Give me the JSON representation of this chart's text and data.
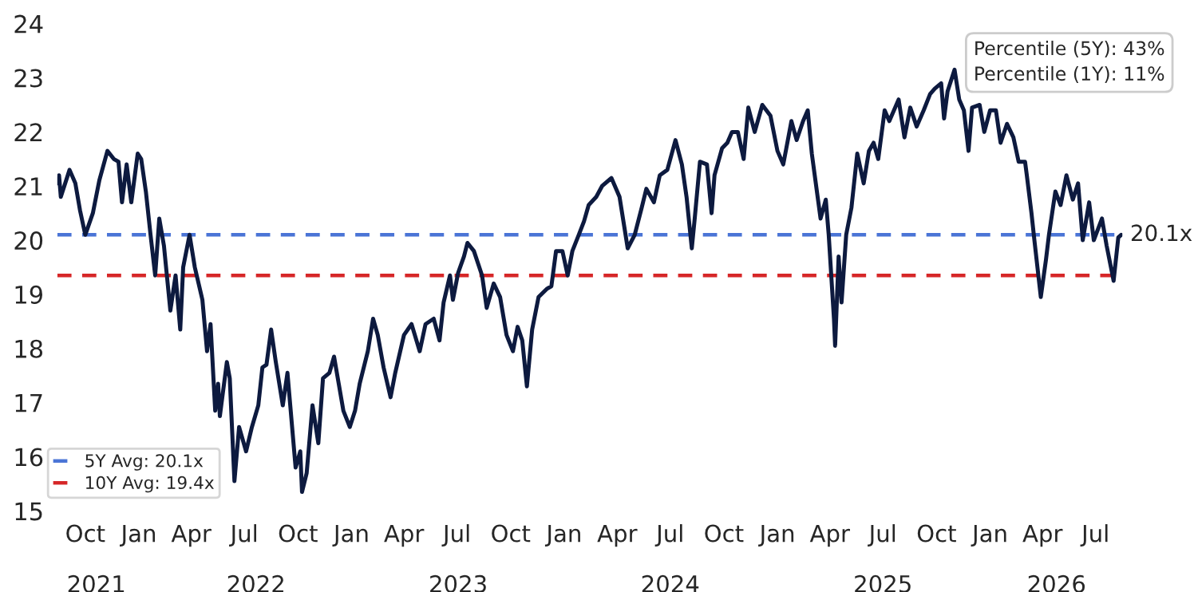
{
  "chart_data": {
    "type": "line",
    "x": [
      "2021-08-15",
      "2021-08-17",
      "2021-08-20",
      "2021-09-04",
      "2021-09-14",
      "2021-09-22",
      "2021-10-01",
      "2021-10-14",
      "2021-10-25",
      "2021-11-08",
      "2021-11-19",
      "2021-11-27",
      "2021-12-03",
      "2021-12-11",
      "2021-12-19",
      "2021-12-30",
      "2022-01-05",
      "2022-01-13",
      "2022-01-21",
      "2022-01-29",
      "2022-02-05",
      "2022-02-13",
      "2022-02-24",
      "2022-03-05",
      "2022-03-13",
      "2022-03-18",
      "2022-03-29",
      "2022-04-07",
      "2022-04-20",
      "2022-04-28",
      "2022-05-04",
      "2022-05-12",
      "2022-05-17",
      "2022-05-20",
      "2022-06-01",
      "2022-06-06",
      "2022-06-14",
      "2022-06-22",
      "2022-07-04",
      "2022-07-14",
      "2022-07-25",
      "2022-08-01",
      "2022-08-08",
      "2022-08-16",
      "2022-08-24",
      "2022-09-05",
      "2022-09-13",
      "2022-09-21",
      "2022-09-27",
      "2022-10-05",
      "2022-10-08",
      "2022-10-16",
      "2022-10-26",
      "2022-11-05",
      "2022-11-13",
      "2022-11-24",
      "2022-12-02",
      "2022-12-10",
      "2022-12-18",
      "2022-12-29",
      "2023-01-07",
      "2023-01-15",
      "2023-01-29",
      "2023-02-07",
      "2023-02-15",
      "2023-02-25",
      "2023-03-09",
      "2023-03-17",
      "2023-04-01",
      "2023-04-14",
      "2023-04-28",
      "2023-05-08",
      "2023-05-22",
      "2023-06-01",
      "2023-06-08",
      "2023-06-19",
      "2023-06-24",
      "2023-07-03",
      "2023-07-13",
      "2023-07-19",
      "2023-07-30",
      "2023-08-13",
      "2023-08-21",
      "2023-09-02",
      "2023-09-13",
      "2023-09-24",
      "2023-10-05",
      "2023-10-13",
      "2023-10-21",
      "2023-10-29",
      "2023-11-07",
      "2023-11-18",
      "2023-12-02",
      "2023-12-10",
      "2023-12-18",
      "2023-12-29",
      "2024-01-07",
      "2024-01-15",
      "2024-01-26",
      "2024-02-04",
      "2024-02-12",
      "2024-02-25",
      "2024-03-06",
      "2024-03-22",
      "2024-04-05",
      "2024-04-19",
      "2024-05-01",
      "2024-05-13",
      "2024-05-21",
      "2024-06-03",
      "2024-06-13",
      "2024-06-26",
      "2024-07-10",
      "2024-07-21",
      "2024-07-29",
      "2024-08-07",
      "2024-08-12",
      "2024-08-21",
      "2024-09-02",
      "2024-09-10",
      "2024-09-15",
      "2024-09-28",
      "2024-10-07",
      "2024-10-15",
      "2024-10-25",
      "2024-11-04",
      "2024-11-12",
      "2024-11-23",
      "2024-12-06",
      "2024-12-20",
      "2025-01-01",
      "2025-01-11",
      "2025-01-25",
      "2025-02-03",
      "2025-02-14",
      "2025-02-22",
      "2025-03-01",
      "2025-03-11",
      "2025-03-16",
      "2025-03-25",
      "2025-03-30",
      "2025-04-08",
      "2025-04-10",
      "2025-04-16",
      "2025-04-21",
      "2025-04-29",
      "2025-05-08",
      "2025-05-18",
      "2025-05-29",
      "2025-06-07",
      "2025-06-15",
      "2025-06-23",
      "2025-07-04",
      "2025-07-12",
      "2025-07-28",
      "2025-08-07",
      "2025-08-17",
      "2025-08-28",
      "2025-09-09",
      "2025-09-20",
      "2025-09-28",
      "2025-10-09",
      "2025-10-14",
      "2025-10-20",
      "2025-11-01",
      "2025-11-09",
      "2025-11-17",
      "2025-11-25",
      "2025-12-01",
      "2025-12-14",
      "2025-12-22",
      "2026-01-01",
      "2026-01-11",
      "2026-01-19",
      "2026-01-30",
      "2026-02-10",
      "2026-02-19",
      "2026-03-02",
      "2026-03-05",
      "2026-03-13",
      "2026-03-18",
      "2026-03-29",
      "2026-04-07",
      "2026-04-12",
      "2026-04-23",
      "2026-05-02",
      "2026-05-12",
      "2026-05-23",
      "2026-06-01",
      "2026-06-09",
      "2026-06-20",
      "2026-06-28",
      "2026-07-12",
      "2026-07-20",
      "2026-08-01",
      "2026-08-09",
      "2026-08-14"
    ],
    "series": [
      {
        "color": "#0d1a3f",
        "values": [
          21.05,
          21.2,
          20.8,
          21.3,
          21.05,
          20.55,
          20.1,
          20.5,
          21.1,
          21.65,
          21.5,
          21.45,
          20.7,
          21.4,
          20.7,
          21.6,
          21.5,
          20.9,
          20.1,
          19.35,
          20.4,
          19.9,
          18.7,
          19.35,
          18.35,
          19.5,
          20.1,
          19.5,
          18.9,
          17.95,
          18.45,
          16.85,
          17.35,
          16.75,
          17.75,
          17.45,
          15.55,
          16.55,
          16.1,
          16.55,
          16.95,
          17.65,
          17.7,
          18.35,
          17.75,
          16.95,
          17.55,
          16.55,
          15.8,
          16.1,
          15.35,
          15.7,
          16.95,
          16.25,
          17.45,
          17.55,
          17.85,
          17.35,
          16.85,
          16.55,
          16.85,
          17.35,
          17.95,
          18.55,
          18.25,
          17.65,
          17.1,
          17.55,
          18.25,
          18.45,
          17.95,
          18.45,
          18.55,
          18.15,
          18.85,
          19.35,
          18.9,
          19.4,
          19.7,
          19.95,
          19.8,
          19.35,
          18.75,
          19.2,
          18.95,
          18.25,
          17.95,
          18.4,
          18.15,
          17.3,
          18.35,
          18.95,
          19.1,
          19.15,
          19.8,
          19.8,
          19.35,
          19.8,
          20.1,
          20.35,
          20.65,
          20.8,
          21.0,
          21.15,
          20.8,
          19.85,
          20.1,
          20.6,
          20.95,
          20.7,
          21.2,
          21.3,
          21.85,
          21.4,
          20.8,
          19.85,
          20.4,
          21.45,
          21.4,
          20.5,
          21.2,
          21.7,
          21.8,
          22.0,
          22.0,
          21.5,
          22.45,
          22.0,
          22.5,
          22.3,
          21.65,
          21.4,
          22.2,
          21.85,
          22.2,
          22.4,
          21.6,
          20.8,
          20.4,
          20.75,
          20.1,
          18.55,
          18.05,
          19.7,
          18.85,
          20.1,
          20.6,
          21.6,
          21.05,
          21.65,
          21.8,
          21.5,
          22.4,
          22.2,
          22.6,
          21.9,
          22.45,
          22.1,
          22.4,
          22.7,
          22.8,
          22.9,
          22.25,
          22.75,
          23.15,
          22.6,
          22.4,
          21.65,
          22.45,
          22.5,
          22.0,
          22.4,
          22.4,
          21.8,
          22.15,
          21.9,
          21.45,
          21.45,
          21.2,
          20.5,
          20.0,
          18.95,
          19.65,
          20.1,
          20.9,
          20.65,
          21.2,
          20.75,
          21.05,
          20.0,
          20.7,
          20.0,
          20.4,
          19.9,
          19.25,
          20.05,
          20.1
        ]
      }
    ],
    "xlim": [
      "2021-08-14",
      "2026-08-16"
    ],
    "xticks": [
      {
        "value": "2021-10-01",
        "label": "Oct"
      },
      {
        "value": "2022-01-01",
        "label": "Jan"
      },
      {
        "value": "2022-04-01",
        "label": "Apr"
      },
      {
        "value": "2022-07-01",
        "label": "Jul"
      },
      {
        "value": "2022-10-01",
        "label": "Oct"
      },
      {
        "value": "2023-01-01",
        "label": "Jan"
      },
      {
        "value": "2023-04-01",
        "label": "Apr"
      },
      {
        "value": "2023-07-01",
        "label": "Jul"
      },
      {
        "value": "2023-10-01",
        "label": "Oct"
      },
      {
        "value": "2024-01-01",
        "label": "Jan"
      },
      {
        "value": "2024-04-01",
        "label": "Apr"
      },
      {
        "value": "2024-07-01",
        "label": "Jul"
      },
      {
        "value": "2024-10-01",
        "label": "Oct"
      },
      {
        "value": "2025-01-01",
        "label": "Jan"
      },
      {
        "value": "2025-04-01",
        "label": "Apr"
      },
      {
        "value": "2025-07-01",
        "label": "Jul"
      },
      {
        "value": "2025-10-01",
        "label": "Oct"
      },
      {
        "value": "2026-01-01",
        "label": "Jan"
      },
      {
        "value": "2026-04-01",
        "label": "Apr"
      },
      {
        "value": "2026-07-01",
        "label": "Jul"
      }
    ],
    "x2lim": [
      "2021-08-14",
      "2026-08-16"
    ],
    "x2ticks": [
      {
        "value": "2021-10-20",
        "label": "2021"
      },
      {
        "value": "2022-07-21",
        "label": "2022"
      },
      {
        "value": "2023-07-03",
        "label": "2023"
      },
      {
        "value": "2024-07-01",
        "label": "2024"
      },
      {
        "value": "2025-07-01",
        "label": "2025"
      },
      {
        "value": "2026-04-25",
        "label": "2026"
      }
    ],
    "ylim": [
      15,
      24
    ],
    "yticks": [
      15,
      16,
      17,
      18,
      19,
      20,
      21,
      22,
      23,
      24
    ],
    "ref_lines": [
      {
        "axis": "y",
        "value": 20.1,
        "label": "5Y Avg: 20.1x",
        "color": "#4a74d6",
        "line_style": "dashed"
      },
      {
        "axis": "y",
        "value": 19.35,
        "label": "10Y Avg: 19.4x",
        "color": "#d62728",
        "line_style": "dashed"
      }
    ],
    "annotations": [
      {
        "text": "20.1x",
        "x": "2026-08-14",
        "y": 20.1
      },
      "Percentile (5Y): 43%",
      "Percentile (1Y): 11%"
    ],
    "legend": "bottom left",
    "grid": false
  }
}
